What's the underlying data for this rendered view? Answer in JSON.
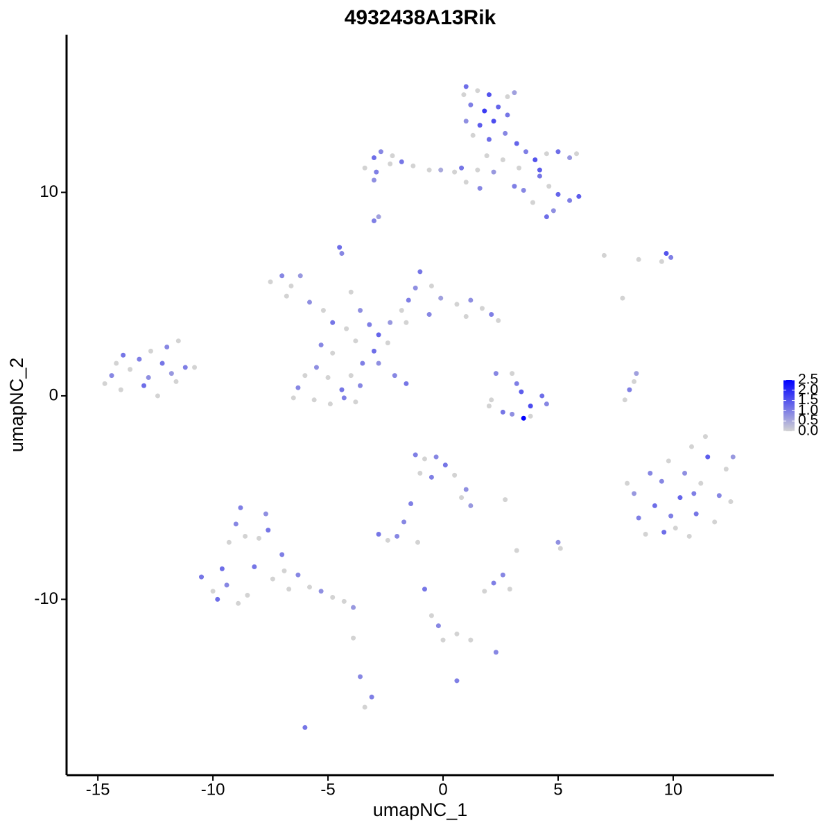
{
  "chart_data": {
    "type": "scatter",
    "title": "4932438A13Rik",
    "xlabel": "umapNC_1",
    "ylabel": "umapNC_2",
    "x": [
      1.0,
      1.5,
      2.0,
      1.2,
      1.8,
      2.4,
      2.8,
      1.0,
      1.6,
      2.2,
      2.8,
      3.1,
      1.3,
      2.0,
      2.7,
      3.2,
      3.6,
      4.0,
      4.5,
      5.0,
      5.5,
      5.8,
      3.3,
      4.2,
      4.6,
      5.0,
      5.5,
      5.9,
      4.8,
      4.5,
      3.1,
      3.5,
      1.5,
      2.2,
      2.6,
      0.8,
      1.0,
      1.6,
      3.9,
      4.2,
      1.9,
      0.9,
      -3.0,
      -2.7,
      -2.2,
      -1.8,
      -1.3,
      -0.6,
      -0.1,
      0.5,
      -3.4,
      -2.9,
      -2.3,
      -3.0,
      -3.0,
      -2.8,
      -7.5,
      -7.0,
      -6.6,
      -6.2,
      -6.8,
      -5.8,
      -5.2,
      -4.8,
      -4.2,
      -4.5,
      -4.4,
      -4.0,
      -3.6,
      -3.2,
      -2.8,
      -2.4,
      -3.0,
      -3.8,
      -2.3,
      -1.8,
      -1.5,
      -1.2,
      -1.0,
      -0.5,
      -0.1,
      0.6,
      1.2,
      1.7,
      2.1,
      2.4,
      1.0,
      -0.6,
      -1.6,
      -3.5,
      -4.0,
      -3.6,
      -4.4,
      -5.0,
      -5.5,
      -6.0,
      -6.3,
      -5.6,
      -4.9,
      -4.3,
      -3.8,
      -6.5,
      -2.8,
      -2.1,
      -1.6,
      -4.8,
      -5.3,
      -14.7,
      -14.4,
      -14.0,
      -13.6,
      -13.2,
      -12.8,
      -12.4,
      -12.2,
      -11.8,
      -11.5,
      -11.2,
      -10.8,
      -13.9,
      -12.7,
      -14.2,
      -13.0,
      -11.6,
      -12.0,
      2.3,
      3.0,
      3.2,
      2.1,
      2.6,
      3.0,
      3.5,
      3.8,
      4.3,
      4.5,
      2.0,
      3.8,
      3.4,
      7.0,
      8.5,
      9.5,
      9.7,
      9.9,
      7.8,
      8.3,
      7.9,
      8.1,
      8.4,
      8.0,
      8.3,
      8.5,
      8.8,
      9.2,
      9.5,
      9.8,
      10.1,
      10.3,
      10.5,
      10.8,
      11.0,
      11.2,
      11.5,
      11.8,
      12.0,
      12.3,
      12.6,
      9.9,
      10.7,
      11.4,
      9.0,
      12.5,
      9.6,
      10.9,
      -10.5,
      -10.0,
      -9.6,
      -9.3,
      -9.0,
      -8.8,
      -8.5,
      -8.2,
      -8.0,
      -7.7,
      -7.4,
      -7.0,
      -6.7,
      -6.3,
      -5.8,
      -5.3,
      -4.8,
      -4.3,
      -3.9,
      -9.8,
      -8.9,
      -7.6,
      -8.6,
      -9.4,
      -6.9,
      -1.2,
      -0.8,
      -0.3,
      0.1,
      -1.0,
      -0.5,
      0.5,
      1.0,
      -1.4,
      -1.7,
      1.2,
      0.8,
      -2.8,
      -2.4,
      -2.0,
      -1.1,
      3.2,
      5.0,
      5.1,
      1.8,
      2.2,
      2.6,
      2.9,
      -0.8,
      -0.5,
      -0.2,
      0.0,
      0.6,
      1.2,
      2.3,
      0.6,
      -3.9,
      -3.6,
      -3.4,
      -3.1,
      -6.0,
      2.7
    ],
    "y": [
      15.2,
      15.0,
      14.8,
      14.3,
      14.0,
      14.2,
      14.7,
      13.5,
      13.3,
      13.5,
      13.8,
      14.9,
      12.8,
      12.6,
      12.9,
      12.4,
      12.0,
      11.6,
      11.9,
      12.0,
      11.7,
      11.9,
      11.2,
      10.8,
      10.3,
      9.9,
      9.6,
      9.8,
      9.1,
      8.8,
      10.3,
      10.1,
      11.1,
      11.0,
      11.6,
      11.2,
      10.5,
      10.2,
      9.5,
      11.1,
      11.8,
      14.8,
      11.7,
      12.0,
      11.8,
      11.5,
      11.3,
      11.1,
      11.1,
      11.0,
      11.2,
      11.0,
      11.4,
      10.6,
      8.6,
      8.8,
      5.6,
      5.9,
      5.4,
      5.9,
      4.9,
      4.6,
      4.2,
      3.6,
      3.3,
      7.3,
      7.0,
      5.1,
      4.2,
      3.5,
      3.0,
      2.6,
      2.2,
      2.7,
      3.6,
      4.2,
      4.7,
      5.3,
      6.1,
      5.4,
      4.8,
      4.5,
      4.7,
      4.3,
      4.0,
      3.7,
      3.9,
      4.0,
      3.6,
      1.6,
      1.0,
      0.5,
      0.3,
      0.9,
      1.4,
      1.0,
      0.4,
      -0.2,
      -0.4,
      -0.1,
      -0.3,
      -0.1,
      1.6,
      1.0,
      0.6,
      2.1,
      2.5,
      0.6,
      1.0,
      0.3,
      1.3,
      1.8,
      0.9,
      0.0,
      1.6,
      1.1,
      2.7,
      1.4,
      1.4,
      2.0,
      2.2,
      1.6,
      0.5,
      0.7,
      2.4,
      1.1,
      1.1,
      0.6,
      -0.2,
      -0.8,
      -0.9,
      -1.1,
      -0.5,
      0.0,
      -0.4,
      -0.5,
      -1.0,
      0.2,
      6.9,
      6.7,
      6.6,
      7.0,
      6.8,
      4.8,
      0.7,
      -0.2,
      0.3,
      1.1,
      -4.3,
      -4.8,
      -6.0,
      -6.8,
      -5.4,
      -4.2,
      -3.2,
      -6.5,
      -5.0,
      -3.8,
      -2.5,
      -5.8,
      -4.3,
      -3.0,
      -6.2,
      -4.9,
      -3.6,
      -3.0,
      -5.9,
      -6.9,
      -2.0,
      -3.8,
      -5.2,
      -6.7,
      -4.8,
      -8.9,
      -9.6,
      -8.5,
      -7.2,
      -6.3,
      -5.5,
      -9.8,
      -8.4,
      -7.0,
      -5.8,
      -9.0,
      -7.8,
      -9.5,
      -8.8,
      -9.4,
      -9.6,
      -9.9,
      -10.1,
      -10.4,
      -10.0,
      -10.2,
      -6.6,
      -6.9,
      -9.3,
      -8.6,
      -2.9,
      -3.1,
      -3.0,
      -3.4,
      -3.8,
      -4.0,
      -3.9,
      -4.6,
      -5.3,
      -6.2,
      -5.4,
      -5.0,
      -6.8,
      -7.1,
      -6.9,
      -7.2,
      -7.6,
      -7.2,
      -7.5,
      -9.6,
      -9.2,
      -8.8,
      -9.5,
      -9.5,
      -10.8,
      -11.3,
      -12.0,
      -11.7,
      -12.0,
      -12.6,
      -14.0,
      -11.9,
      -13.8,
      -15.3,
      -14.8,
      -16.3,
      -5.1
    ],
    "expression": [
      1.2,
      0,
      1.5,
      1.0,
      1.8,
      1.3,
      0,
      0.8,
      1.4,
      1.6,
      1.1,
      0.6,
      0,
      1.2,
      0.9,
      1.3,
      1.0,
      1.5,
      0,
      1.2,
      0.7,
      0,
      0,
      1.1,
      0,
      1.3,
      1.0,
      1.4,
      0.8,
      1.2,
      1.0,
      0.9,
      0,
      0.7,
      0,
      1.1,
      0,
      0.9,
      0,
      1.4,
      0,
      0,
      1.2,
      0.9,
      0,
      1.1,
      0,
      0,
      0.5,
      0,
      0,
      1.0,
      0,
      0.8,
      1.0,
      0.6,
      0,
      0.9,
      0,
      0.7,
      0,
      0.8,
      0,
      1.1,
      0,
      1.2,
      0.9,
      0,
      0.8,
      1.0,
      1.3,
      0,
      1.2,
      0,
      0.7,
      0,
      1.0,
      0.8,
      1.1,
      0,
      0.6,
      0,
      0.8,
      0,
      1.0,
      0,
      0,
      0.9,
      0,
      1.0,
      0,
      0.9,
      1.1,
      0,
      0.8,
      0,
      0.9,
      0,
      0,
      1.0,
      0,
      0,
      0.8,
      0.9,
      1.1,
      0,
      0.9,
      0,
      0.9,
      0,
      0,
      1.0,
      0.8,
      0,
      1.1,
      0.7,
      0,
      1.0,
      0,
      1.1,
      0,
      0,
      1.2,
      0,
      0.9,
      0.9,
      0,
      1.0,
      0,
      1.1,
      0.8,
      2.5,
      1.6,
      1.2,
      0.9,
      0,
      0,
      1.4,
      0,
      0,
      0,
      1.5,
      1.0,
      0,
      0,
      0,
      1.0,
      0.6,
      0,
      0.7,
      1.0,
      0,
      1.2,
      0.9,
      0,
      0,
      1.3,
      0.8,
      0,
      1.1,
      0,
      1.4,
      0,
      0.9,
      0,
      0.7,
      1.0,
      0,
      0,
      0.9,
      0,
      1.2,
      1.0,
      1.1,
      0,
      1.2,
      0,
      0.9,
      1.0,
      0,
      1.1,
      0,
      0.8,
      0,
      1.0,
      0,
      0.9,
      0,
      0.8,
      0,
      0,
      0.7,
      1.2,
      0,
      1.1,
      0,
      0.9,
      0,
      1.0,
      0,
      0.9,
      1.1,
      0,
      1.0,
      0,
      0.8,
      1.0,
      0.9,
      0.7,
      0,
      1.1,
      0,
      0.9,
      0,
      0,
      0.8,
      0,
      0,
      1.0,
      0.9,
      0,
      1.1,
      0,
      0.9,
      0,
      0,
      0,
      0.9,
      1.0,
      0,
      0.9,
      0,
      1.0,
      1.1,
      0
    ],
    "xlim": [
      -16.36,
      14.37
    ],
    "ylim": [
      -18.64,
      17.75
    ],
    "xticks": [
      -15,
      -10,
      -5,
      0,
      5,
      10
    ],
    "yticks": [
      -10,
      0,
      10
    ],
    "color_scale": {
      "low": "#d3d3d3",
      "high": "#0000ff",
      "lim": [
        0,
        2.5
      ],
      "ticks": [
        {
          "value": 2.5,
          "label": "2.5"
        },
        {
          "value": 2.0,
          "label": "2.0"
        },
        {
          "value": 1.5,
          "label": "1.5"
        },
        {
          "value": 1.0,
          "label": "1.0"
        },
        {
          "value": 0.5,
          "label": "0.5"
        },
        {
          "value": 0,
          "label": "0.0"
        }
      ]
    },
    "grid": false
  }
}
